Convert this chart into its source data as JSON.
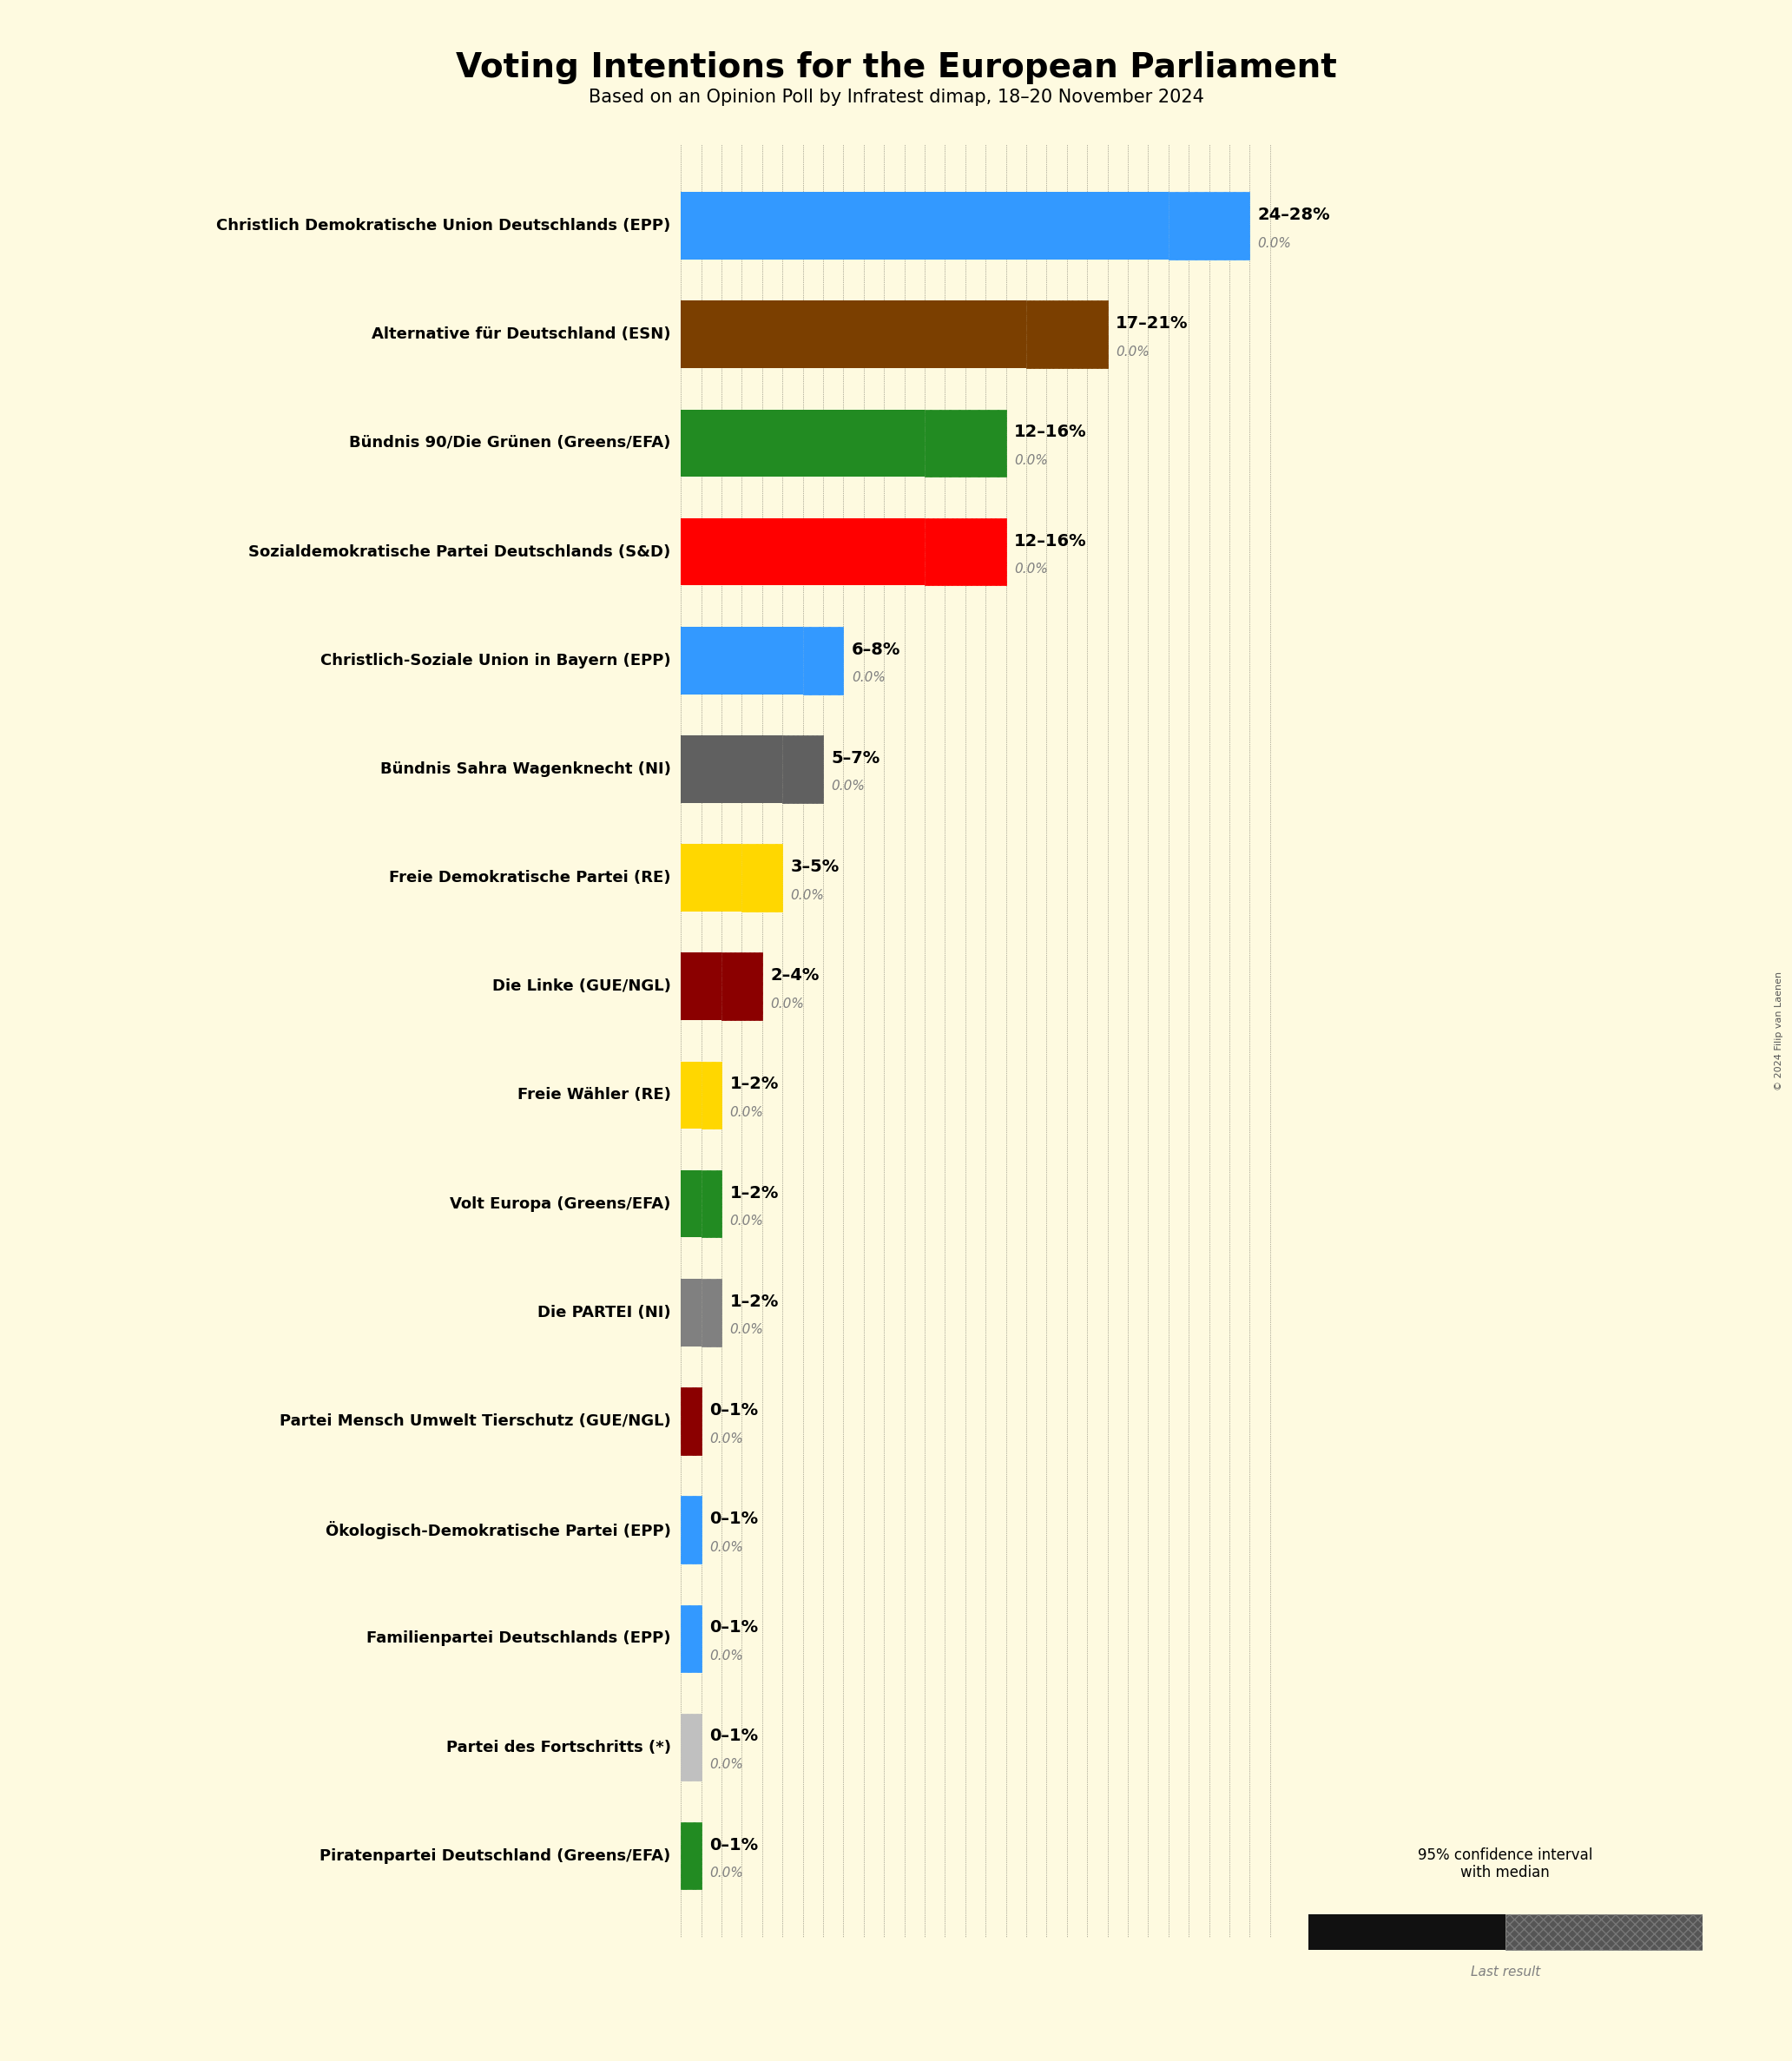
{
  "title": "Voting Intentions for the European Parliament",
  "subtitle": "Based on an Opinion Poll by Infratest dimap, 18–20 November 2024",
  "background_color": "#FEFAE0",
  "parties": [
    {
      "name": "Christlich Demokratische Union Deutschlands (EPP)",
      "color": "#3399FF",
      "median": 26,
      "low": 24,
      "high": 28,
      "last": 0.0,
      "label": "24–28%"
    },
    {
      "name": "Alternative für Deutschland (ESN)",
      "color": "#7B3F00",
      "median": 19,
      "low": 17,
      "high": 21,
      "last": 0.0,
      "label": "17–21%"
    },
    {
      "name": "Bündnis 90/Die Grünen (Greens/EFA)",
      "color": "#228B22",
      "median": 14,
      "low": 12,
      "high": 16,
      "last": 0.0,
      "label": "12–16%"
    },
    {
      "name": "Sozialdemokratische Partei Deutschlands (S&D)",
      "color": "#FF0000",
      "median": 14,
      "low": 12,
      "high": 16,
      "last": 0.0,
      "label": "12–16%"
    },
    {
      "name": "Christlich-Soziale Union in Bayern (EPP)",
      "color": "#3399FF",
      "median": 7,
      "low": 6,
      "high": 8,
      "last": 0.0,
      "label": "6–8%"
    },
    {
      "name": "Bündnis Sahra Wagenknecht (NI)",
      "color": "#606060",
      "median": 6,
      "low": 5,
      "high": 7,
      "last": 0.0,
      "label": "5–7%"
    },
    {
      "name": "Freie Demokratische Partei (RE)",
      "color": "#FFD700",
      "median": 4,
      "low": 3,
      "high": 5,
      "last": 0.0,
      "label": "3–5%"
    },
    {
      "name": "Die Linke (GUE/NGL)",
      "color": "#8B0000",
      "median": 3,
      "low": 2,
      "high": 4,
      "last": 0.0,
      "label": "2–4%"
    },
    {
      "name": "Freie Wähler (RE)",
      "color": "#FFD700",
      "median": 1.5,
      "low": 1,
      "high": 2,
      "last": 0.0,
      "label": "1–2%"
    },
    {
      "name": "Volt Europa (Greens/EFA)",
      "color": "#228B22",
      "median": 1.5,
      "low": 1,
      "high": 2,
      "last": 0.0,
      "label": "1–2%"
    },
    {
      "name": "Die PARTEI (NI)",
      "color": "#808080",
      "median": 1.5,
      "low": 1,
      "high": 2,
      "last": 0.0,
      "label": "1–2%"
    },
    {
      "name": "Partei Mensch Umwelt Tierschutz (GUE/NGL)",
      "color": "#8B0000",
      "median": 0.5,
      "low": 0,
      "high": 1,
      "last": 0.0,
      "label": "0–1%"
    },
    {
      "name": "Ökologisch-Demokratische Partei (EPP)",
      "color": "#3399FF",
      "median": 0.5,
      "low": 0,
      "high": 1,
      "last": 0.0,
      "label": "0–1%"
    },
    {
      "name": "Familienpartei Deutschlands (EPP)",
      "color": "#3399FF",
      "median": 0.5,
      "low": 0,
      "high": 1,
      "last": 0.0,
      "label": "0–1%"
    },
    {
      "name": "Partei des Fortschritts (*)",
      "color": "#C0C0C0",
      "median": 0.5,
      "low": 0,
      "high": 1,
      "last": 0.0,
      "label": "0–1%"
    },
    {
      "name": "Piratenpartei Deutschland (Greens/EFA)",
      "color": "#228B22",
      "median": 0.5,
      "low": 0,
      "high": 1,
      "last": 0.0,
      "label": "0–1%"
    }
  ],
  "xlim": [
    0,
    30
  ],
  "legend_title": "95% confidence interval\nwith median",
  "legend_last": "Last result",
  "copyright": "© 2024 Filip van Laenen"
}
